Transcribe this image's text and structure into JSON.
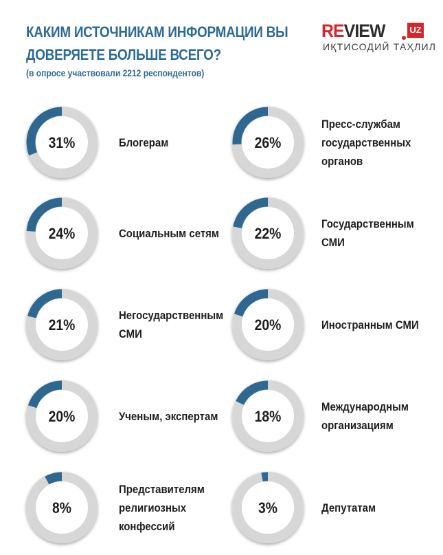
{
  "header": {
    "title_line1": "КАКИМ ИСТОЧНИКАМ ИНФОРМАЦИИ ВЫ",
    "title_line2": "ДОВЕРЯЕТЕ БОЛЬШЕ ВСЕГО?",
    "subtitle": "(в опросе участвовали 2212 респондентов)"
  },
  "logo": {
    "main_red": "RE",
    "main_dark": "VIEW",
    "badge": "UZ",
    "sub": "ИҚТИСОДИЙ ТАҲЛИЛ"
  },
  "colors": {
    "accent": "#2d6a96",
    "ring_track": "#d7d7d7",
    "ring_fill": "#2e6891",
    "logo_red": "#d6262c"
  },
  "chart_data": {
    "type": "donut",
    "title": "КАКИМ ИСТОЧНИКАМ ИНФОРМАЦИИ ВЫ ДОВЕРЯЕТЕ БОЛЬШЕ ВСЕГО?",
    "subtitle": "(в опросе участвовали 2212 респондентов)",
    "unit": "%",
    "items": [
      {
        "label_lines": [
          "Блогерам"
        ],
        "value": 31,
        "value_label": "31%"
      },
      {
        "label_lines": [
          "Пресс-службам",
          "государственных",
          "органов"
        ],
        "value": 26,
        "value_label": "26%"
      },
      {
        "label_lines": [
          "Социальным сетям"
        ],
        "value": 24,
        "value_label": "24%"
      },
      {
        "label_lines": [
          "Государственным",
          "СМИ"
        ],
        "value": 22,
        "value_label": "22%"
      },
      {
        "label_lines": [
          "Негосударственным",
          "СМИ"
        ],
        "value": 21,
        "value_label": "21%"
      },
      {
        "label_lines": [
          "Иностранным СМИ"
        ],
        "value": 20,
        "value_label": "20%"
      },
      {
        "label_lines": [
          "Ученым, экспертам"
        ],
        "value": 20,
        "value_label": "20%"
      },
      {
        "label_lines": [
          "Международным",
          "организациям"
        ],
        "value": 18,
        "value_label": "18%"
      },
      {
        "label_lines": [
          "Представителям",
          "религиозных",
          "конфессий"
        ],
        "value": 8,
        "value_label": "8%"
      },
      {
        "label_lines": [
          "Депутатам"
        ],
        "value": 3,
        "value_label": "3%"
      }
    ]
  }
}
